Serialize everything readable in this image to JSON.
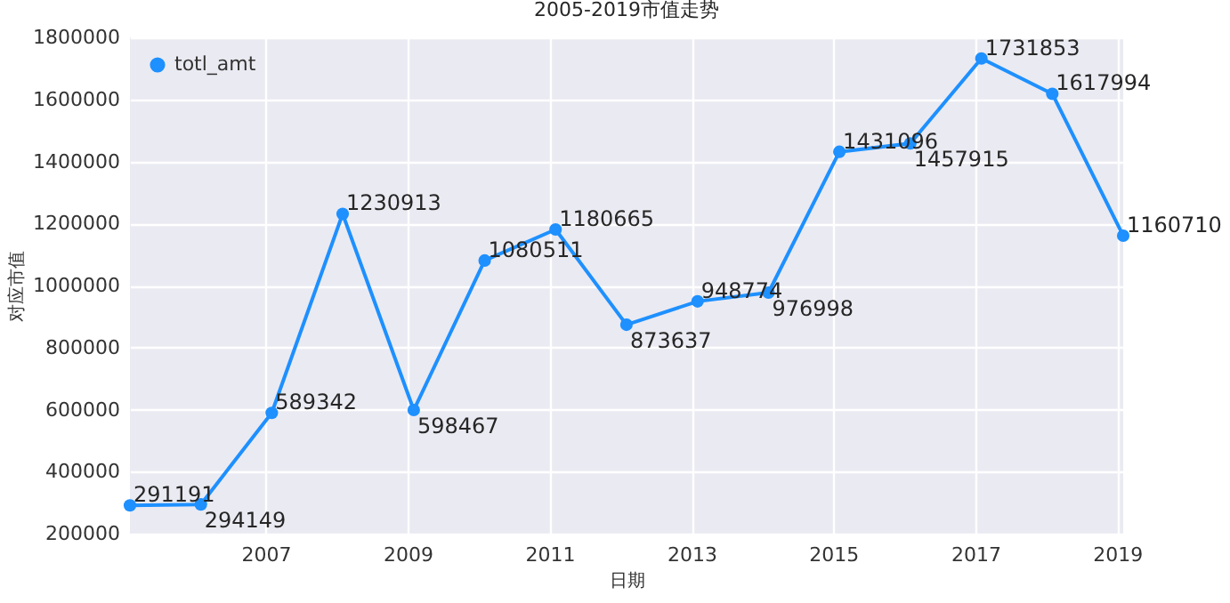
{
  "chart_data": {
    "type": "line",
    "title": "2005-2019市值走势",
    "xlabel": "日期",
    "ylabel": "对应市值",
    "x": [
      "2005-02",
      "2006-02",
      "2007-02",
      "2008-02",
      "2009-02",
      "2010-02",
      "2011-02",
      "2012-02",
      "2013-02",
      "2014-02",
      "2015-02",
      "2016-02",
      "2017-02",
      "2018-02",
      "2019-02"
    ],
    "series": [
      {
        "name": "totl_amt",
        "color": "#1e90ff",
        "values": [
          291191,
          294149,
          589342,
          1230913,
          598467,
          1080511,
          1180665,
          873637,
          948774,
          976998,
          1431096,
          1457915,
          1731853,
          1617994,
          1160710
        ]
      }
    ],
    "xlim": [
      "2005-02",
      "2019-02"
    ],
    "xticks": [
      "2007",
      "2009",
      "2011",
      "2013",
      "2015",
      "2017",
      "2019"
    ],
    "ylim": [
      200000,
      1800000
    ],
    "yticks": [
      200000,
      400000,
      600000,
      800000,
      1000000,
      1200000,
      1400000,
      1600000,
      1800000
    ],
    "grid": true,
    "legend": "top left",
    "marker": "circle",
    "data_labels": true
  }
}
